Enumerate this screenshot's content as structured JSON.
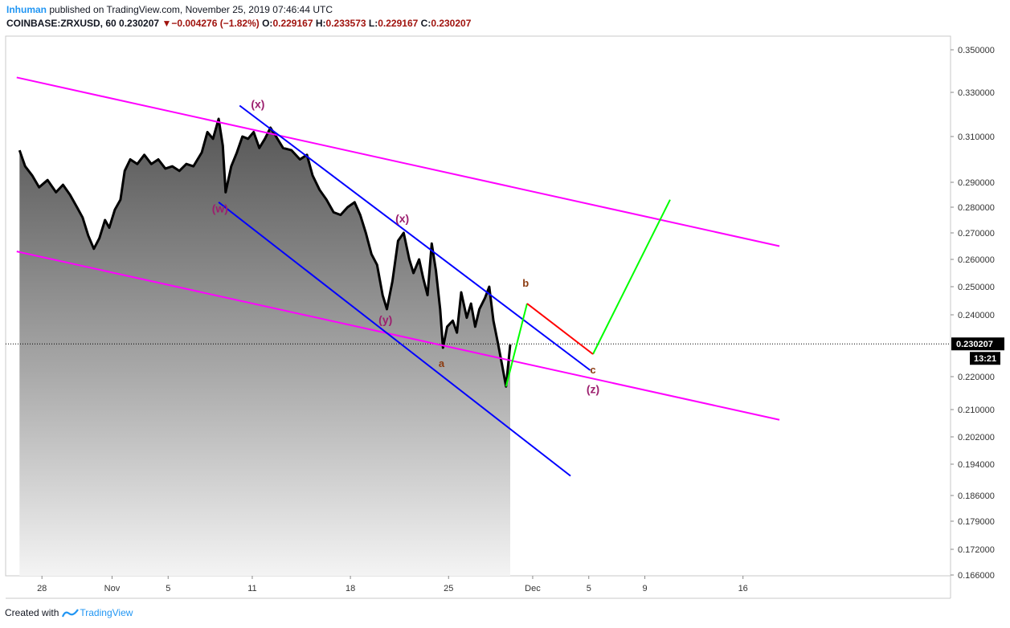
{
  "header": {
    "author": "Inhuman",
    "published": "published on TradingView.com, November 25, 2019 07:46:44 UTC",
    "symbol": "COINBASE:ZRXUSD, 60",
    "last": "0.230207",
    "change": "−0.004276 (−1.82%)",
    "o_label": "O:",
    "o": "0.229167",
    "h_label": "H:",
    "h": "0.233573",
    "l_label": "L:",
    "l": "0.229167",
    "c_label": "C:",
    "c": "0.230207"
  },
  "footer": {
    "created_with": "Created with",
    "brand": "TradingView"
  },
  "colors": {
    "price": "#000000",
    "magenta": "#ff00ff",
    "blue": "#0000ff",
    "green": "#00ff00",
    "red": "#ff0000",
    "wave_label": "#9c1f6e",
    "abc_label": "#8b3a0f"
  },
  "chart_data": {
    "type": "area",
    "title": "COINBASE:ZRXUSD, 60",
    "ylim": [
      0.166,
      0.35
    ],
    "y_ticks": [
      "0.350000",
      "0.330000",
      "0.310000",
      "0.290000",
      "0.280000",
      "0.270000",
      "0.260000",
      "0.250000",
      "0.240000",
      "0.220000",
      "0.210000",
      "0.202000",
      "0.194000",
      "0.186000",
      "0.179000",
      "0.172000",
      "0.166000"
    ],
    "x_ticks": [
      {
        "label": "28",
        "day": -4
      },
      {
        "label": "Nov",
        "day": 1
      },
      {
        "label": "5",
        "day": 5
      },
      {
        "label": "11",
        "day": 11
      },
      {
        "label": "18",
        "day": 18
      },
      {
        "label": "25",
        "day": 25
      },
      {
        "label": "Dec",
        "day": 31
      },
      {
        "label": "5",
        "day": 35
      },
      {
        "label": "9",
        "day": 39
      },
      {
        "label": "16",
        "day": 46
      }
    ],
    "last_price": "0.230207",
    "countdown": "13:21",
    "series": [
      {
        "name": "ZRXUSD close",
        "points": [
          [
            -5.6,
            0.304
          ],
          [
            -5.2,
            0.297
          ],
          [
            -4.7,
            0.293
          ],
          [
            -4.2,
            0.288
          ],
          [
            -3.6,
            0.291
          ],
          [
            -3.0,
            0.286
          ],
          [
            -2.5,
            0.289
          ],
          [
            -2.0,
            0.285
          ],
          [
            -1.5,
            0.28
          ],
          [
            -1.1,
            0.276
          ],
          [
            -0.7,
            0.269
          ],
          [
            -0.3,
            0.264
          ],
          [
            0.1,
            0.268
          ],
          [
            0.5,
            0.275
          ],
          [
            0.8,
            0.272
          ],
          [
            1.2,
            0.279
          ],
          [
            1.6,
            0.283
          ],
          [
            1.9,
            0.295
          ],
          [
            2.3,
            0.3
          ],
          [
            2.8,
            0.298
          ],
          [
            3.3,
            0.302
          ],
          [
            3.8,
            0.298
          ],
          [
            4.3,
            0.3
          ],
          [
            4.8,
            0.296
          ],
          [
            5.3,
            0.297
          ],
          [
            5.8,
            0.295
          ],
          [
            6.3,
            0.298
          ],
          [
            6.8,
            0.297
          ],
          [
            7.4,
            0.303
          ],
          [
            7.8,
            0.312
          ],
          [
            8.2,
            0.309
          ],
          [
            8.6,
            0.318
          ],
          [
            8.9,
            0.306
          ],
          [
            9.1,
            0.286
          ],
          [
            9.5,
            0.297
          ],
          [
            9.9,
            0.303
          ],
          [
            10.3,
            0.31
          ],
          [
            10.7,
            0.309
          ],
          [
            11.1,
            0.312
          ],
          [
            11.5,
            0.305
          ],
          [
            11.9,
            0.309
          ],
          [
            12.3,
            0.314
          ],
          [
            12.7,
            0.31
          ],
          [
            13.2,
            0.305
          ],
          [
            13.8,
            0.304
          ],
          [
            14.4,
            0.3
          ],
          [
            14.9,
            0.302
          ],
          [
            15.3,
            0.293
          ],
          [
            15.8,
            0.287
          ],
          [
            16.3,
            0.283
          ],
          [
            16.8,
            0.278
          ],
          [
            17.3,
            0.277
          ],
          [
            17.8,
            0.28
          ],
          [
            18.3,
            0.282
          ],
          [
            18.7,
            0.277
          ],
          [
            19.1,
            0.27
          ],
          [
            19.5,
            0.262
          ],
          [
            19.9,
            0.258
          ],
          [
            20.3,
            0.247
          ],
          [
            20.6,
            0.242
          ],
          [
            21.0,
            0.252
          ],
          [
            21.4,
            0.267
          ],
          [
            21.8,
            0.27
          ],
          [
            22.2,
            0.26
          ],
          [
            22.5,
            0.255
          ],
          [
            22.9,
            0.26
          ],
          [
            23.2,
            0.253
          ],
          [
            23.5,
            0.247
          ],
          [
            23.8,
            0.266
          ],
          [
            24.1,
            0.256
          ],
          [
            24.4,
            0.242
          ],
          [
            24.6,
            0.229
          ],
          [
            24.9,
            0.236
          ],
          [
            25.3,
            0.238
          ],
          [
            25.6,
            0.234
          ],
          [
            25.9,
            0.248
          ],
          [
            26.3,
            0.239
          ],
          [
            26.6,
            0.244
          ],
          [
            26.9,
            0.236
          ],
          [
            27.2,
            0.242
          ],
          [
            27.6,
            0.246
          ],
          [
            27.9,
            0.25
          ],
          [
            28.2,
            0.238
          ],
          [
            28.5,
            0.231
          ],
          [
            28.8,
            0.224
          ],
          [
            29.1,
            0.217
          ],
          [
            29.4,
            0.23
          ]
        ]
      }
    ],
    "annotations": {
      "magenta_lines": [
        {
          "from": [
            -5.8,
            0.337
          ],
          "to": [
            48.6,
            0.265
          ]
        },
        {
          "from": [
            -5.8,
            0.263
          ],
          "to": [
            48.6,
            0.207
          ]
        }
      ],
      "blue_lines": [
        {
          "from": [
            10.1,
            0.324
          ],
          "to": [
            35.1,
            0.222
          ]
        },
        {
          "from": [
            8.6,
            0.282
          ],
          "to": [
            33.7,
            0.191
          ]
        }
      ],
      "green_lines": [
        {
          "from": [
            29.1,
            0.217
          ],
          "to": [
            30.6,
            0.244
          ]
        },
        {
          "from": [
            35.3,
            0.227
          ],
          "to": [
            40.8,
            0.283
          ]
        }
      ],
      "red_lines": [
        {
          "from": [
            30.6,
            0.244
          ],
          "to": [
            35.3,
            0.227
          ]
        }
      ],
      "wave_labels": [
        {
          "text": "(x)",
          "day": 11.4,
          "price": 0.323
        },
        {
          "text": "(w)",
          "day": 8.7,
          "price": 0.278
        },
        {
          "text": "(x)",
          "day": 21.7,
          "price": 0.274
        },
        {
          "text": "(y)",
          "day": 20.5,
          "price": 0.237
        },
        {
          "text": "(z)",
          "day": 35.3,
          "price": 0.215
        }
      ],
      "abc_labels": [
        {
          "text": "b",
          "day": 30.5,
          "price": 0.25
        },
        {
          "text": "a",
          "day": 24.5,
          "price": 0.223
        },
        {
          "text": "c",
          "day": 35.3,
          "price": 0.221
        }
      ]
    }
  }
}
